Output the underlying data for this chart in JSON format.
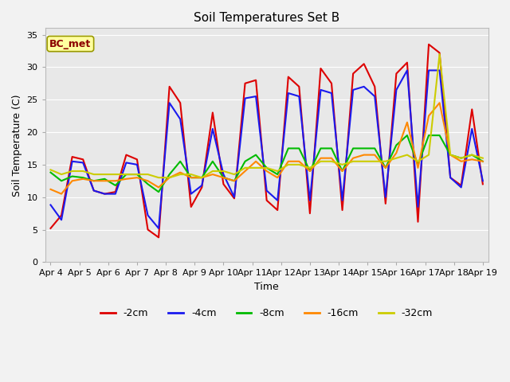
{
  "title": "Soil Temperatures Set B",
  "xlabel": "Time",
  "ylabel": "Soil Temperature (C)",
  "ylim": [
    0,
    36
  ],
  "yticks": [
    0,
    5,
    10,
    15,
    20,
    25,
    30,
    35
  ],
  "annotation": "BC_met",
  "fig_facecolor": "#f2f2f2",
  "ax_facecolor": "#e8e8e8",
  "legend_entries": [
    "-2cm",
    "-4cm",
    "-8cm",
    "-16cm",
    "-32cm"
  ],
  "line_colors": [
    "#dd0000",
    "#1a1aee",
    "#00bb00",
    "#ff8800",
    "#cccc00"
  ],
  "line_widths": [
    1.5,
    1.5,
    1.5,
    1.5,
    1.5
  ],
  "x_tick_labels": [
    "Apr 4",
    "Apr 5",
    "Apr 6",
    "Apr 7",
    "Apr 8",
    "Apr 9",
    "Apr 10",
    "Apr 11",
    "Apr 12",
    "Apr 13",
    "Apr 14",
    "Apr 15",
    "Apr 16",
    "Apr 17",
    "Apr 18",
    "Apr 19"
  ],
  "series": {
    "-2cm": [
      5.2,
      7.2,
      16.2,
      15.8,
      11.0,
      10.5,
      10.8,
      16.5,
      15.8,
      5.0,
      3.8,
      27.0,
      24.5,
      8.5,
      11.5,
      23.0,
      12.0,
      9.8,
      27.5,
      28.0,
      9.5,
      8.0,
      28.5,
      27.0,
      7.5,
      29.8,
      27.5,
      8.0,
      29.0,
      30.5,
      27.0,
      9.0,
      29.0,
      30.7,
      6.2,
      33.5,
      32.2,
      13.0,
      11.8,
      23.5,
      12.0
    ],
    "-4cm": [
      8.8,
      6.5,
      15.5,
      15.3,
      11.0,
      10.5,
      10.5,
      15.3,
      15.0,
      7.2,
      5.2,
      24.5,
      22.0,
      10.5,
      11.8,
      20.5,
      13.5,
      10.0,
      25.2,
      25.5,
      11.0,
      9.5,
      26.0,
      25.5,
      9.5,
      26.5,
      26.0,
      9.5,
      26.5,
      27.0,
      25.5,
      10.0,
      26.5,
      29.5,
      8.5,
      29.5,
      29.5,
      13.0,
      11.5,
      20.5,
      12.5
    ],
    "-8cm": [
      13.8,
      12.5,
      13.2,
      13.0,
      12.5,
      12.8,
      11.8,
      13.5,
      13.5,
      12.0,
      10.8,
      13.5,
      15.5,
      13.0,
      13.0,
      15.5,
      13.0,
      12.5,
      15.5,
      16.5,
      14.5,
      13.5,
      17.5,
      17.5,
      14.0,
      17.5,
      17.5,
      14.0,
      17.5,
      17.5,
      17.5,
      14.5,
      18.0,
      19.5,
      15.0,
      19.5,
      19.5,
      16.5,
      16.0,
      16.5,
      15.5
    ],
    "-16cm": [
      11.2,
      10.5,
      12.5,
      12.8,
      12.5,
      12.5,
      12.5,
      12.8,
      13.0,
      12.5,
      11.5,
      13.0,
      13.8,
      13.0,
      13.0,
      13.5,
      13.0,
      12.5,
      14.0,
      15.5,
      14.0,
      13.0,
      15.5,
      15.5,
      14.0,
      16.0,
      16.0,
      14.0,
      16.0,
      16.5,
      16.5,
      14.5,
      16.8,
      21.5,
      14.5,
      22.5,
      24.5,
      16.5,
      15.5,
      15.8,
      15.5
    ],
    "-32cm": [
      14.2,
      13.5,
      14.0,
      14.0,
      13.5,
      13.5,
      13.5,
      13.5,
      13.5,
      13.5,
      13.0,
      13.0,
      13.5,
      13.5,
      13.0,
      14.0,
      14.0,
      13.5,
      14.5,
      14.5,
      14.5,
      14.0,
      15.0,
      15.0,
      14.5,
      15.5,
      15.5,
      15.0,
      15.5,
      15.5,
      15.5,
      15.5,
      16.0,
      16.5,
      15.5,
      16.5,
      32.0,
      16.5,
      16.0,
      16.5,
      16.0
    ]
  }
}
